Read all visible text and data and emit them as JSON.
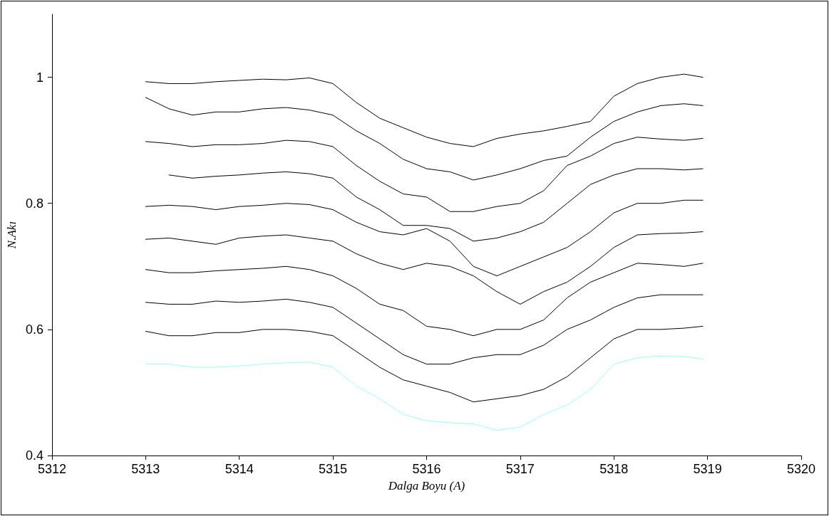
{
  "chart_data": {
    "type": "line",
    "xlabel": "Dalga Boyu (A)",
    "ylabel": "N.Akı",
    "x": [
      5313,
      5313.25,
      5313.5,
      5313.75,
      5314,
      5314.25,
      5314.5,
      5314.75,
      5315,
      5315.25,
      5315.5,
      5315.75,
      5316,
      5316.25,
      5316.5,
      5316.75,
      5317,
      5317.25,
      5317.5,
      5317.75,
      5318,
      5318.25,
      5318.5,
      5318.75,
      5318.95
    ],
    "xlim": [
      5312,
      5320
    ],
    "xticks": [
      5312,
      5313,
      5314,
      5315,
      5316,
      5317,
      5318,
      5319,
      5320
    ],
    "ylim": [
      0.4,
      1.1
    ],
    "yticks": [
      {
        "value": 0.4,
        "label": "0.4"
      },
      {
        "value": 0.6,
        "label": "0.6"
      },
      {
        "value": 0.8,
        "label": "0.8"
      },
      1
    ],
    "marker": "none",
    "line_style": "solid",
    "series": [
      {
        "color": "#000000",
        "values": [
          0.993,
          0.99,
          0.99,
          0.993,
          0.995,
          0.997,
          0.996,
          0.999,
          0.99,
          0.96,
          0.935,
          0.92,
          0.905,
          0.895,
          0.89,
          0.903,
          0.91,
          0.915,
          0.922,
          0.93,
          0.97,
          0.99,
          1.0,
          1.005,
          1.0
        ]
      },
      {
        "color": "#000000",
        "values": [
          0.968,
          0.95,
          0.94,
          0.945,
          0.945,
          0.95,
          0.952,
          0.948,
          0.94,
          0.915,
          0.895,
          0.87,
          0.855,
          0.85,
          0.837,
          0.845,
          0.855,
          0.868,
          0.875,
          0.905,
          0.93,
          0.945,
          0.955,
          0.958,
          0.955
        ]
      },
      {
        "color": "#000000",
        "values": [
          0.898,
          0.895,
          0.89,
          0.893,
          0.893,
          0.895,
          0.9,
          0.898,
          0.89,
          0.86,
          0.835,
          0.815,
          0.81,
          0.787,
          0.787,
          0.795,
          0.8,
          0.82,
          0.86,
          0.875,
          0.895,
          0.905,
          0.902,
          0.9,
          0.903
        ]
      },
      {
        "color": "#000000",
        "values": [
          null,
          0.845,
          0.84,
          0.843,
          0.845,
          0.848,
          0.85,
          0.847,
          0.84,
          0.81,
          0.79,
          0.765,
          0.765,
          0.76,
          0.74,
          0.745,
          0.755,
          0.77,
          0.8,
          0.83,
          0.845,
          0.855,
          0.855,
          0.853,
          0.855
        ]
      },
      {
        "color": "#000000",
        "values": [
          0.795,
          0.797,
          0.795,
          0.79,
          0.795,
          0.797,
          0.8,
          0.798,
          0.79,
          0.77,
          0.755,
          0.75,
          0.76,
          0.74,
          0.7,
          0.685,
          0.7,
          0.715,
          0.73,
          0.755,
          0.785,
          0.8,
          0.8,
          0.805,
          0.805
        ]
      },
      {
        "color": "#000000",
        "values": [
          0.743,
          0.745,
          0.74,
          0.735,
          0.745,
          0.748,
          0.75,
          0.745,
          0.74,
          0.72,
          0.705,
          0.695,
          0.705,
          0.7,
          0.685,
          0.66,
          0.64,
          0.66,
          0.675,
          0.7,
          0.73,
          0.75,
          0.752,
          0.753,
          0.755
        ]
      },
      {
        "color": "#000000",
        "values": [
          0.695,
          0.69,
          0.69,
          0.693,
          0.695,
          0.697,
          0.7,
          0.695,
          0.685,
          0.665,
          0.64,
          0.63,
          0.605,
          0.6,
          0.59,
          0.6,
          0.6,
          0.615,
          0.65,
          0.675,
          0.69,
          0.705,
          0.703,
          0.7,
          0.705
        ]
      },
      {
        "color": "#000000",
        "values": [
          0.643,
          0.64,
          0.64,
          0.645,
          0.643,
          0.645,
          0.648,
          0.643,
          0.635,
          0.61,
          0.585,
          0.56,
          0.545,
          0.545,
          0.555,
          0.56,
          0.56,
          0.575,
          0.6,
          0.615,
          0.635,
          0.65,
          0.655,
          0.655,
          0.655
        ]
      },
      {
        "color": "#000000",
        "values": [
          0.597,
          0.59,
          0.59,
          0.595,
          0.595,
          0.6,
          0.6,
          0.597,
          0.59,
          0.565,
          0.54,
          0.52,
          0.51,
          0.5,
          0.485,
          0.49,
          0.495,
          0.505,
          0.525,
          0.555,
          0.585,
          0.6,
          0.6,
          0.602,
          0.605
        ]
      },
      {
        "color": "#99ffff",
        "values": [
          0.545,
          0.545,
          0.54,
          0.54,
          0.542,
          0.545,
          0.547,
          0.548,
          0.54,
          0.51,
          0.49,
          0.465,
          0.455,
          0.452,
          0.45,
          0.44,
          0.445,
          0.465,
          0.48,
          0.505,
          0.545,
          0.555,
          0.558,
          0.557,
          0.553
        ]
      }
    ]
  }
}
